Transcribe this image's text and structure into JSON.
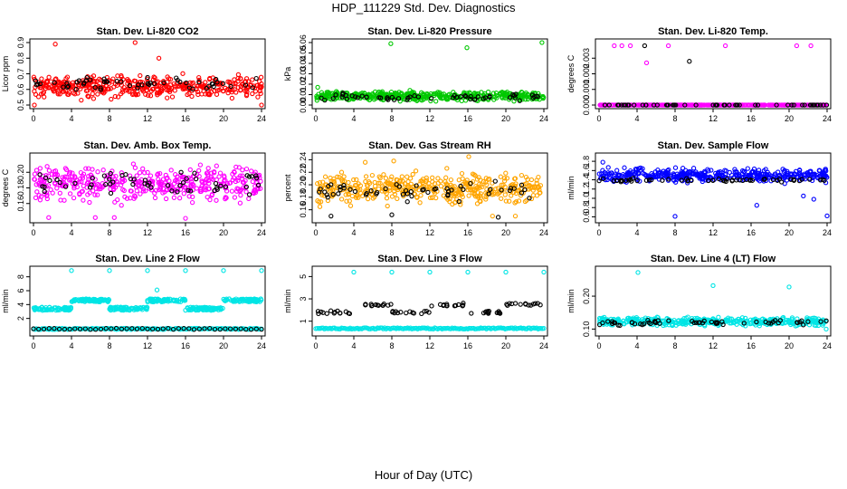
{
  "page": {
    "title": "HDP_111229  Std. Dev. Diagnostics",
    "xlabel": "Hour of Day (UTC)"
  },
  "chart_data": [
    {
      "type": "scatter",
      "title": "Stan. Dev. Li-820 CO2",
      "ylabel": "Licor ppm",
      "xlim": [
        0,
        24
      ],
      "ylim": [
        0.5,
        0.9
      ],
      "xticks": [
        "0",
        "4",
        "8",
        "12",
        "16",
        "20",
        "24"
      ],
      "yticks": [
        "0.5",
        "0.6",
        "0.7",
        "0.8",
        "0.9"
      ],
      "grid": false,
      "series": [
        {
          "color": "#ff0000",
          "band": [
            0.52,
            0.72
          ],
          "outliers": [
            [
              2.3,
              0.89
            ],
            [
              10.7,
              0.9
            ],
            [
              0.1,
              0.5
            ],
            [
              24.0,
              0.5
            ],
            [
              13.2,
              0.8
            ]
          ]
        },
        {
          "color": "#000000",
          "sparse": true,
          "band": [
            0.57,
            0.7
          ]
        }
      ]
    },
    {
      "type": "scatter",
      "title": "Stan. Dev. Li-820 Pressure",
      "ylabel": "kPa",
      "xlim": [
        0,
        24
      ],
      "ylim": [
        0.0,
        0.06
      ],
      "xticks": [
        "0",
        "4",
        "8",
        "12",
        "16",
        "20",
        "24"
      ],
      "yticks": [
        "0.00",
        "0.01",
        "0.02",
        "0.03",
        "0.04",
        "0.05",
        "0.06"
      ],
      "grid": false,
      "series": [
        {
          "color": "#00c800",
          "band": [
            0.002,
            0.015
          ],
          "outliers": [
            [
              7.9,
              0.059
            ],
            [
              15.9,
              0.055
            ],
            [
              23.8,
              0.06
            ],
            [
              0.2,
              0.017
            ]
          ]
        },
        {
          "color": "#000000",
          "sparse": true,
          "band": [
            0.003,
            0.012
          ]
        }
      ]
    },
    {
      "type": "scatter",
      "title": "Stan. Dev. Li-820 Temp.",
      "ylabel": "degrees C",
      "xlim": [
        0,
        24
      ],
      "ylim": [
        0.0,
        0.004
      ],
      "xticks": [
        "0",
        "4",
        "8",
        "12",
        "16",
        "20",
        "24"
      ],
      "yticks": [
        "0.000",
        "0.001",
        "0.002",
        "0.003"
      ],
      "grid": false,
      "series": [
        {
          "color": "#ff00ff",
          "band": [
            0.0,
            0.0
          ],
          "outliers": [
            [
              1.6,
              0.0038
            ],
            [
              2.4,
              0.0038
            ],
            [
              3.3,
              0.0038
            ],
            [
              7.3,
              0.0038
            ],
            [
              13.3,
              0.0038
            ],
            [
              20.8,
              0.0038
            ],
            [
              22.3,
              0.0038
            ],
            [
              5.0,
              0.0027
            ]
          ]
        },
        {
          "color": "#000000",
          "sparse": true,
          "band": [
            0.0,
            0.0
          ],
          "outliers": [
            [
              4.8,
              0.0038
            ],
            [
              9.5,
              0.0028
            ]
          ]
        }
      ]
    },
    {
      "type": "scatter",
      "title": "Stan. Dev. Amb. Box Temp.",
      "ylabel": "degrees C",
      "xlim": [
        0,
        24
      ],
      "ylim": [
        0.14,
        0.22
      ],
      "xticks": [
        "0",
        "4",
        "8",
        "12",
        "16",
        "20",
        "24"
      ],
      "yticks": [
        "0.16",
        "0.18",
        "0.20"
      ],
      "grid": false,
      "series": [
        {
          "color": "#ff00ff",
          "band": [
            0.155,
            0.215
          ],
          "outliers": [
            [
              19.5,
              0.222
            ],
            [
              1.6,
              0.142
            ],
            [
              8.5,
              0.142
            ],
            [
              6.5,
              0.142
            ],
            [
              16.0,
              0.141
            ]
          ]
        },
        {
          "color": "#000000",
          "sparse": true,
          "band": [
            0.165,
            0.205
          ]
        }
      ]
    },
    {
      "type": "scatter",
      "title": "Stan. Dev. Gas Stream RH",
      "ylabel": "percent",
      "xlim": [
        0,
        24
      ],
      "ylim": [
        0.145,
        0.245
      ],
      "xticks": [
        "0",
        "4",
        "8",
        "12",
        "16",
        "20",
        "24"
      ],
      "yticks": [
        "0.16",
        "0.18",
        "0.20",
        "0.22",
        "0.24"
      ],
      "grid": false,
      "series": [
        {
          "color": "#ffa500",
          "band": [
            0.16,
            0.228
          ],
          "outliers": [
            [
              8.2,
              0.238
            ],
            [
              5.2,
              0.236
            ],
            [
              16.1,
              0.245
            ],
            [
              18.6,
              0.15
            ],
            [
              21.0,
              0.15
            ]
          ]
        },
        {
          "color": "#000000",
          "sparse": true,
          "band": [
            0.17,
            0.21
          ],
          "outliers": [
            [
              1.6,
              0.15
            ],
            [
              8.0,
              0.152
            ],
            [
              19.2,
              0.148
            ]
          ]
        }
      ]
    },
    {
      "type": "scatter",
      "title": "Stan. Dev. Sample Flow",
      "ylabel": "ml/min",
      "xlim": [
        0,
        24
      ],
      "ylim": [
        0.55,
        1.9
      ],
      "xticks": [
        "0",
        "4",
        "8",
        "12",
        "16",
        "20",
        "24"
      ],
      "yticks": [
        "0.6",
        "0.8",
        "1.0",
        "1.2",
        "1.4",
        "1.6",
        "1.8"
      ],
      "grid": false,
      "series": [
        {
          "color": "#0000ff",
          "band": [
            1.3,
            1.7
          ],
          "outliers": [
            [
              0.4,
              1.78
            ],
            [
              8.0,
              0.61
            ],
            [
              24.0,
              0.62
            ],
            [
              21.5,
              1.05
            ],
            [
              22.6,
              0.98
            ],
            [
              16.6,
              0.85
            ]
          ]
        },
        {
          "color": "#000000",
          "sparse": true,
          "band": [
            1.33,
            1.45
          ]
        }
      ]
    },
    {
      "type": "scatter",
      "title": "Stan. Dev. Line 2 Flow",
      "ylabel": "ml/min",
      "xlim": [
        0,
        24
      ],
      "ylim": [
        0.0,
        9.0
      ],
      "xticks": [
        "0",
        "4",
        "8",
        "12",
        "16",
        "20",
        "24"
      ],
      "yticks": [
        "2",
        "4",
        "6",
        "8"
      ],
      "grid": false,
      "series": [
        {
          "color": "#00e5e5",
          "segments": [
            [
              0,
              4,
              3.4
            ],
            [
              4,
              8,
              4.6
            ],
            [
              8,
              12,
              3.4
            ],
            [
              12,
              16,
              4.6
            ],
            [
              16,
              20,
              3.4
            ],
            [
              20,
              24,
              4.6
            ]
          ],
          "baseline": 0.5,
          "outliers": [
            [
              4.0,
              8.9
            ],
            [
              8.0,
              8.9
            ],
            [
              12.0,
              8.9
            ],
            [
              16.0,
              8.9
            ],
            [
              20.0,
              8.9
            ],
            [
              24.0,
              8.9
            ],
            [
              13.0,
              6.1
            ]
          ]
        },
        {
          "color": "#000000",
          "baseline": 0.5
        }
      ]
    },
    {
      "type": "scatter",
      "title": "Stan. Dev. Line 3 Flow",
      "ylabel": "ml/min",
      "xlim": [
        0,
        24
      ],
      "ylim": [
        0.0,
        5.6
      ],
      "xticks": [
        "0",
        "4",
        "8",
        "12",
        "16",
        "20",
        "24"
      ],
      "yticks": [
        "1",
        "3",
        "5"
      ],
      "grid": false,
      "series": [
        {
          "color": "#00e5e5",
          "baseline": 0.35,
          "outliers": [
            [
              4.0,
              5.4
            ],
            [
              8.0,
              5.4
            ],
            [
              12.0,
              5.4
            ],
            [
              16.0,
              5.4
            ],
            [
              20.0,
              5.4
            ],
            [
              24.0,
              5.4
            ]
          ]
        },
        {
          "color": "#000000",
          "segments": [
            [
              0,
              4,
              1.8
            ],
            [
              4,
              8,
              2.5
            ],
            [
              8,
              12,
              1.8
            ],
            [
              12,
              16,
              2.5
            ],
            [
              16,
              20,
              1.8
            ],
            [
              20,
              24,
              2.5
            ]
          ]
        }
      ]
    },
    {
      "type": "scatter",
      "title": "Stan. Dev. Line 4 (LT) Flow",
      "ylabel": "ml/min",
      "xlim": [
        0,
        24
      ],
      "ylim": [
        0.09,
        0.28
      ],
      "xticks": [
        "0",
        "4",
        "8",
        "12",
        "16",
        "20",
        "24"
      ],
      "yticks": [
        "0.10",
        "0.20"
      ],
      "grid": false,
      "series": [
        {
          "color": "#00e5e5",
          "band": [
            0.105,
            0.14
          ],
          "outliers": [
            [
              4.1,
              0.272
            ],
            [
              12.0,
              0.232
            ],
            [
              20.0,
              0.228
            ],
            [
              23.9,
              0.1
            ]
          ]
        },
        {
          "color": "#000000",
          "sparse": true,
          "band": [
            0.11,
            0.13
          ]
        }
      ]
    }
  ]
}
